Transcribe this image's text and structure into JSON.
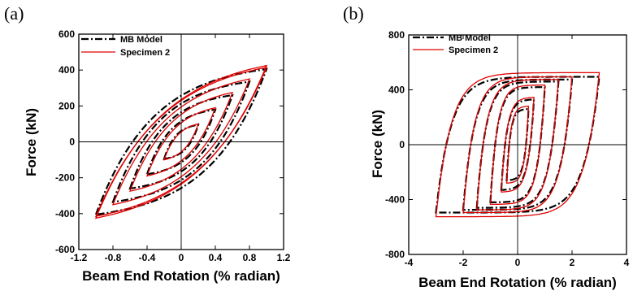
{
  "chart_data": [
    {
      "panel_label": "(a)",
      "type": "line",
      "xlabel": "Beam End Rotation (% radian)",
      "ylabel": "Force (kN)",
      "xlim": [
        -1.2,
        1.2
      ],
      "ylim": [
        -600,
        600
      ],
      "x_tick_labels": [
        "-1.2",
        "-0.8",
        "-0.4",
        "0",
        "0.4",
        "0.8",
        "1.2"
      ],
      "y_tick_labels": [
        "600",
        "400",
        "200",
        "0",
        "-200",
        "-400",
        "-600"
      ],
      "zero_lines": true,
      "legend_position": "top-left",
      "series": [
        {
          "name": "MB Model",
          "color": "#000000",
          "style": "dash-dot",
          "loops": [
            {
              "amplitude": 0.2,
              "peak_force": 95,
              "intercept_force": 10,
              "sharpness": 3
            },
            {
              "amplitude": 0.4,
              "peak_force": 180,
              "intercept_force": 30,
              "sharpness": 3
            },
            {
              "amplitude": 0.6,
              "peak_force": 260,
              "intercept_force": 60,
              "sharpness": 3
            },
            {
              "amplitude": 0.8,
              "peak_force": 335,
              "intercept_force": 85,
              "sharpness": 3
            },
            {
              "amplitude": 1.0,
              "peak_force": 405,
              "intercept_force": 110,
              "sharpness": 3
            }
          ]
        },
        {
          "name": "Specimen 2",
          "color": "#e00000",
          "style": "solid",
          "loops": [
            {
              "amplitude": 0.2,
              "peak_force": 100,
              "intercept_force": 20,
              "sharpness": 2.5
            },
            {
              "amplitude": 0.4,
              "peak_force": 190,
              "intercept_force": 45,
              "sharpness": 2.5
            },
            {
              "amplitude": 0.6,
              "peak_force": 275,
              "intercept_force": 80,
              "sharpness": 2.5
            },
            {
              "amplitude": 0.8,
              "peak_force": 350,
              "intercept_force": 110,
              "sharpness": 2.5
            },
            {
              "amplitude": 1.0,
              "peak_force": 425,
              "intercept_force": 135,
              "sharpness": 2.5
            },
            {
              "amplitude": 1.0,
              "peak_force": 415,
              "intercept_force": 120,
              "sharpness": 2.5
            }
          ]
        }
      ]
    },
    {
      "panel_label": "(b)",
      "type": "line",
      "xlabel": "Beam End Rotation (% radian)",
      "ylabel": "Force (kN)",
      "xlim": [
        -4,
        4
      ],
      "ylim": [
        -800,
        800
      ],
      "x_tick_labels": [
        "-4",
        "-2",
        "0",
        "2",
        "4"
      ],
      "y_tick_labels": [
        "800",
        "400",
        "0",
        "-400",
        "-800"
      ],
      "zero_lines": true,
      "legend_position": "top-left",
      "series": [
        {
          "name": "MB Model",
          "color": "#000000",
          "style": "dash-dot",
          "loops": [
            {
              "amplitude": 0.4,
              "peak_force": 260,
              "intercept_force": 120,
              "sharpness": 6
            },
            {
              "amplitude": 0.6,
              "peak_force": 330,
              "intercept_force": 200,
              "sharpness": 6
            },
            {
              "amplitude": 1.0,
              "peak_force": 420,
              "intercept_force": 320,
              "sharpness": 8
            },
            {
              "amplitude": 1.5,
              "peak_force": 460,
              "intercept_force": 380,
              "sharpness": 9
            },
            {
              "amplitude": 2.0,
              "peak_force": 475,
              "intercept_force": 410,
              "sharpness": 10
            },
            {
              "amplitude": 3.0,
              "peak_force": 495,
              "intercept_force": 430,
              "sharpness": 11
            }
          ]
        },
        {
          "name": "Specimen 2",
          "color": "#e00000",
          "style": "solid",
          "loops": [
            {
              "amplitude": 0.4,
              "peak_force": 280,
              "intercept_force": 130,
              "sharpness": 6
            },
            {
              "amplitude": 0.6,
              "peak_force": 345,
              "intercept_force": 210,
              "sharpness": 6
            },
            {
              "amplitude": 1.0,
              "peak_force": 435,
              "intercept_force": 330,
              "sharpness": 8
            },
            {
              "amplitude": 1.5,
              "peak_force": 475,
              "intercept_force": 390,
              "sharpness": 9
            },
            {
              "amplitude": 2.0,
              "peak_force": 495,
              "intercept_force": 420,
              "sharpness": 10
            },
            {
              "amplitude": 3.0,
              "peak_force": 525,
              "intercept_force": 400,
              "sharpness": 11
            }
          ]
        }
      ]
    }
  ]
}
